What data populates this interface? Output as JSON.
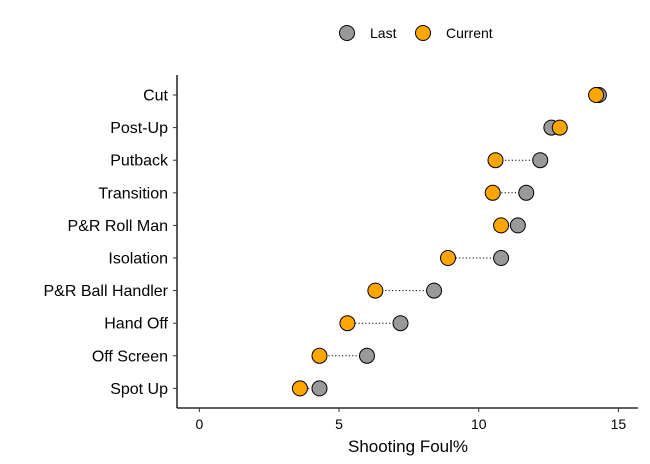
{
  "chart_data": {
    "type": "scatter",
    "xlabel": "Shooting Foul%",
    "ylabel": "",
    "xlim": [
      -0.8,
      15.7
    ],
    "xticks": [
      0,
      5,
      10,
      15
    ],
    "xtick_labels": [
      "0",
      "5",
      "10",
      "15"
    ],
    "grid": false,
    "legend_position": "top",
    "categories": [
      "Cut",
      "Post-Up",
      "Putback",
      "Transition",
      "P&R Roll Man",
      "Isolation",
      "P&R Ball Handler",
      "Hand Off",
      "Off Screen",
      "Spot Up"
    ],
    "series": [
      {
        "name": "Last",
        "color": "#999999",
        "values": [
          14.3,
          12.6,
          12.2,
          11.7,
          11.4,
          10.8,
          8.4,
          7.2,
          6.0,
          4.3
        ]
      },
      {
        "name": "Current",
        "color": "#FFA500",
        "values": [
          14.2,
          12.9,
          10.6,
          10.5,
          10.8,
          8.9,
          6.3,
          5.3,
          4.3,
          3.6
        ]
      }
    ]
  }
}
